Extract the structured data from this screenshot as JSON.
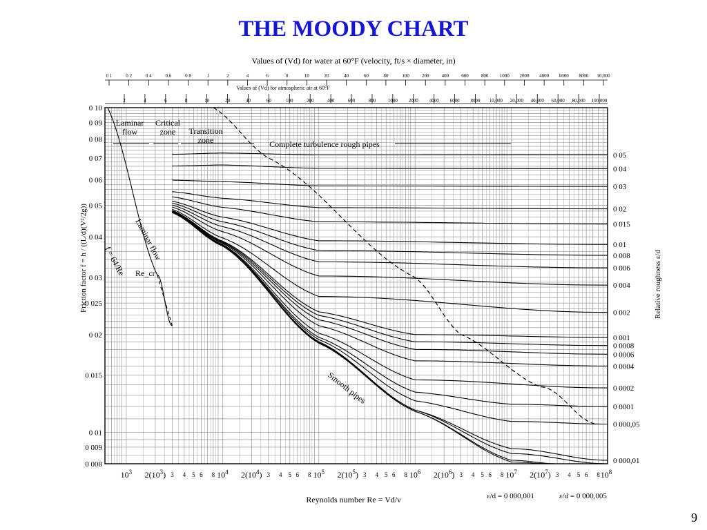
{
  "slide": {
    "title": "THE MOODY CHART",
    "page_number": "9"
  },
  "chart_data": {
    "type": "line",
    "title": "THE MOODY CHART",
    "scale": {
      "x": "log",
      "y": "log"
    },
    "xlim": [
      600,
      100000000
    ],
    "ylim": [
      0.008,
      0.1
    ],
    "grid": true,
    "xlabel": "Reynolds number Re = Vd/ν",
    "ylabel": "Friction factor f = h / ((L/d)(V²/2g))",
    "right_axis_label": "Relative roughness ε/d",
    "top_axis_water_label": "Values of (Vd) for water at 60°F (velocity, ft/s × diameter, in)",
    "top_axis_air_label": "Values of (Vd) for atmospheric air at 60°F",
    "y_ticks": [
      {
        "value": 0.1,
        "label": "0 10"
      },
      {
        "value": 0.09,
        "label": "0 09"
      },
      {
        "value": 0.08,
        "label": "0 08"
      },
      {
        "value": 0.07,
        "label": "0 07"
      },
      {
        "value": 0.06,
        "label": "0 06"
      },
      {
        "value": 0.05,
        "label": "0 05"
      },
      {
        "value": 0.04,
        "label": "0 04"
      },
      {
        "value": 0.03,
        "label": "0 03"
      },
      {
        "value": 0.025,
        "label": "0 025"
      },
      {
        "value": 0.02,
        "label": "0 02"
      },
      {
        "value": 0.015,
        "label": "0 015"
      },
      {
        "value": 0.01,
        "label": "0 01"
      },
      {
        "value": 0.009,
        "label": "0 009"
      },
      {
        "value": 0.008,
        "label": "0 008"
      }
    ],
    "x_ticks": [
      {
        "value": 1000,
        "label": "10³"
      },
      {
        "value": 2000,
        "label": "2(10³)"
      },
      {
        "value": 3000,
        "label": "3"
      },
      {
        "value": 4000,
        "label": "4"
      },
      {
        "value": 5000,
        "label": "5"
      },
      {
        "value": 6000,
        "label": "6"
      },
      {
        "value": 8000,
        "label": "8"
      },
      {
        "value": 10000,
        "label": "10⁴"
      },
      {
        "value": 20000,
        "label": "2(10⁴)"
      },
      {
        "value": 30000,
        "label": "3"
      },
      {
        "value": 40000,
        "label": "4"
      },
      {
        "value": 50000,
        "label": "5"
      },
      {
        "value": 60000,
        "label": "6"
      },
      {
        "value": 80000,
        "label": "8"
      },
      {
        "value": 100000,
        "label": "10⁵"
      },
      {
        "value": 200000,
        "label": "2(10⁵)"
      },
      {
        "value": 300000,
        "label": "3"
      },
      {
        "value": 400000,
        "label": "4"
      },
      {
        "value": 500000,
        "label": "5"
      },
      {
        "value": 600000,
        "label": "6"
      },
      {
        "value": 800000,
        "label": "8"
      },
      {
        "value": 1000000,
        "label": "10⁶"
      },
      {
        "value": 2000000,
        "label": "2(10⁶)"
      },
      {
        "value": 3000000,
        "label": "3"
      },
      {
        "value": 4000000,
        "label": "4"
      },
      {
        "value": 5000000,
        "label": "5"
      },
      {
        "value": 6000000,
        "label": "6"
      },
      {
        "value": 8000000,
        "label": "8"
      },
      {
        "value": 10000000,
        "label": "10⁷"
      },
      {
        "value": 20000000,
        "label": "2(10⁷)"
      },
      {
        "value": 30000000,
        "label": "3"
      },
      {
        "value": 40000000,
        "label": "4"
      },
      {
        "value": 50000000,
        "label": "5"
      },
      {
        "value": 60000000,
        "label": "6"
      },
      {
        "value": 80000000,
        "label": "8"
      },
      {
        "value": 100000000,
        "label": "10⁸"
      }
    ],
    "top_water_ticks": [
      "0 1",
      "0 2",
      "0 4",
      "0.6",
      "0 8",
      "1",
      "2",
      "4",
      "6",
      "8",
      "10",
      "20",
      "40",
      "60",
      "80",
      "100",
      "200",
      "400",
      "600",
      "800",
      "1000",
      "2000",
      "4000",
      "6000",
      "8000",
      "10,000"
    ],
    "top_air_ticks": [
      "2",
      "4",
      "6",
      "8",
      "10",
      "20",
      "40",
      "60",
      "100",
      "200",
      "400",
      "600",
      "800",
      "1000",
      "2000",
      "4000",
      "6000",
      "8000",
      "10,000",
      "20,000",
      "40,000",
      "60,000",
      "80,000",
      "100,000"
    ],
    "series": [
      {
        "name": "0 05",
        "roughness": 0.05,
        "values": [
          [
            3000,
            0.0718
          ],
          [
            10000,
            0.0725
          ],
          [
            100000,
            0.0715
          ],
          [
            100000000,
            0.0716
          ]
        ]
      },
      {
        "name": "0 04",
        "roughness": 0.04,
        "values": [
          [
            3000,
            0.0661
          ],
          [
            10000,
            0.0666
          ],
          [
            100000,
            0.065
          ],
          [
            100000000,
            0.0649
          ]
        ]
      },
      {
        "name": "0 03",
        "roughness": 0.03,
        "values": [
          [
            3000,
            0.0598
          ],
          [
            10000,
            0.0592
          ],
          [
            100000,
            0.0574
          ],
          [
            100000000,
            0.0572
          ]
        ]
      },
      {
        "name": "0 02",
        "roughness": 0.02,
        "values": [
          [
            3000,
            0.0551
          ],
          [
            10000,
            0.0526
          ],
          [
            100000,
            0.0492
          ],
          [
            100000000,
            0.0488
          ]
        ]
      },
      {
        "name": "0 015",
        "roughness": 0.015,
        "values": [
          [
            3000,
            0.0531
          ],
          [
            10000,
            0.0493
          ],
          [
            100000,
            0.0445
          ],
          [
            100000000,
            0.0438
          ]
        ]
      },
      {
        "name": "0 01",
        "roughness": 0.01,
        "values": [
          [
            3000,
            0.0515
          ],
          [
            10000,
            0.046
          ],
          [
            100000,
            0.0389
          ],
          [
            100000000,
            0.0379
          ]
        ]
      },
      {
        "name": "0 008",
        "roughness": 0.008,
        "values": [
          [
            3000,
            0.0508
          ],
          [
            10000,
            0.0445
          ],
          [
            100000,
            0.0363
          ],
          [
            100000000,
            0.0351
          ]
        ]
      },
      {
        "name": "0 006",
        "roughness": 0.006,
        "values": [
          [
            3000,
            0.0501
          ],
          [
            10000,
            0.043
          ],
          [
            100000,
            0.0335
          ],
          [
            100000000,
            0.0321
          ]
        ]
      },
      {
        "name": "0 004",
        "roughness": 0.004,
        "values": [
          [
            3000,
            0.0494
          ],
          [
            10000,
            0.0415
          ],
          [
            100000,
            0.0303
          ],
          [
            100000000,
            0.0284
          ]
        ]
      },
      {
        "name": "0 002",
        "roughness": 0.002,
        "values": [
          [
            3000,
            0.0486
          ],
          [
            10000,
            0.0397
          ],
          [
            100000,
            0.0262
          ],
          [
            100000000,
            0.0234
          ]
        ]
      },
      {
        "name": "0 001",
        "roughness": 0.001,
        "values": [
          [
            3000,
            0.0482
          ],
          [
            10000,
            0.0388
          ],
          [
            100000,
            0.0235
          ],
          [
            1000000,
            0.02
          ],
          [
            100000000,
            0.0196
          ]
        ]
      },
      {
        "name": "0 0008",
        "roughness": 0.0008,
        "values": [
          [
            3000,
            0.0481
          ],
          [
            10000,
            0.0386
          ],
          [
            100000,
            0.0229
          ],
          [
            1000000,
            0.019
          ],
          [
            100000000,
            0.0185
          ]
        ]
      },
      {
        "name": "0 0006",
        "roughness": 0.0006,
        "values": [
          [
            3000,
            0.048
          ],
          [
            10000,
            0.0384
          ],
          [
            100000,
            0.0222
          ],
          [
            1000000,
            0.018
          ],
          [
            100000000,
            0.0174
          ]
        ]
      },
      {
        "name": "0 0004",
        "roughness": 0.0004,
        "values": [
          [
            3000,
            0.0479
          ],
          [
            10000,
            0.0382
          ],
          [
            100000,
            0.0213
          ],
          [
            1000000,
            0.0166
          ],
          [
            100000000,
            0.016
          ]
        ]
      },
      {
        "name": "0 0002",
        "roughness": 0.0002,
        "values": [
          [
            3000,
            0.0478
          ],
          [
            10000,
            0.0379
          ],
          [
            100000,
            0.0202
          ],
          [
            1000000,
            0.0145
          ],
          [
            100000000,
            0.0137
          ]
        ]
      },
      {
        "name": "0 0001",
        "roughness": 0.0001,
        "values": [
          [
            3000,
            0.0477
          ],
          [
            10000,
            0.0378
          ],
          [
            100000,
            0.0196
          ],
          [
            1000000,
            0.0133
          ],
          [
            10000000,
            0.0122
          ],
          [
            100000000,
            0.012
          ]
        ]
      },
      {
        "name": "0 000,05",
        "roughness": 5e-05,
        "values": [
          [
            3000,
            0.0476
          ],
          [
            10000,
            0.0377
          ],
          [
            100000,
            0.0193
          ],
          [
            1000000,
            0.0125
          ],
          [
            10000000,
            0.0108
          ],
          [
            100000000,
            0.0106
          ]
        ]
      },
      {
        "name": "0 000,01",
        "roughness": 1e-05,
        "values": [
          [
            3000,
            0.0475
          ],
          [
            10000,
            0.0376
          ],
          [
            100000,
            0.019
          ],
          [
            1000000,
            0.0117
          ],
          [
            10000000,
            0.0089
          ],
          [
            100000000,
            0.0082
          ]
        ]
      },
      {
        "name": "ε/d = 0 000,005",
        "roughness": 5e-06,
        "values": [
          [
            3000,
            0.0475
          ],
          [
            10000,
            0.0375
          ],
          [
            100000,
            0.0189
          ],
          [
            1000000,
            0.0117
          ],
          [
            10000000,
            0.0086
          ],
          [
            100000000,
            0.008
          ]
        ]
      },
      {
        "name": "ε/d = 0 000,001",
        "roughness": 1e-06,
        "values": [
          [
            3000,
            0.0475
          ],
          [
            10000,
            0.0375
          ],
          [
            100000,
            0.0189
          ],
          [
            1000000,
            0.0116
          ],
          [
            10000000,
            0.0082
          ],
          [
            30000000,
            0.008
          ]
        ]
      },
      {
        "name": "Smooth pipes",
        "values": [
          [
            3000,
            0.0475
          ],
          [
            10000,
            0.0375
          ],
          [
            100000,
            0.0188
          ],
          [
            1000000,
            0.0116
          ],
          [
            10000000,
            0.0081
          ],
          [
            25000000,
            0.008
          ]
        ]
      },
      {
        "name": "Laminar flow f = 64/Re",
        "values": [
          [
            640,
            0.1
          ],
          [
            2100,
            0.0305
          ],
          [
            3000,
            0.0213
          ]
        ]
      },
      {
        "name": "Complete turbulence boundary",
        "style": "dashed",
        "values": [
          [
            8000,
            0.1
          ],
          [
            30000,
            0.07
          ],
          [
            1000000,
            0.03
          ],
          [
            3000000,
            0.02
          ],
          [
            20000000,
            0.0138
          ],
          [
            80000000,
            0.0106
          ]
        ]
      }
    ],
    "annotations": {
      "laminar_zone": "Laminar\nflow",
      "critical_zone": "Critical\nzone",
      "transition_zone": "Transition\nzone",
      "complete_turbulence": "Complete turbulence  rough pipes",
      "laminar_flow": "Laminar flow",
      "laminar_formula": "f = 64/Re",
      "re_cr": "Re_cr",
      "smooth_pipes": "Smooth pipes"
    }
  }
}
